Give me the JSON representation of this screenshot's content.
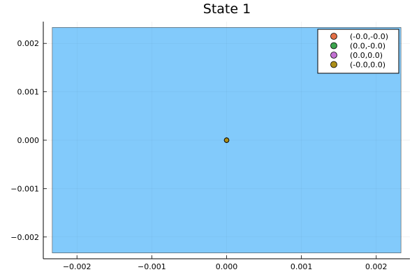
{
  "chart_data": {
    "type": "scatter",
    "title": "State 1",
    "xlabel": "",
    "ylabel": "",
    "xlim": [
      -0.00245,
      0.00245
    ],
    "ylim": [
      -0.00245,
      0.00245
    ],
    "x_ticks": [
      -0.002,
      -0.001,
      0.0,
      0.001,
      0.002
    ],
    "x_tick_labels": [
      "−0.002",
      "−0.001",
      "0.000",
      "0.001",
      "0.002"
    ],
    "y_ticks": [
      -0.002,
      -0.001,
      0.0,
      0.001,
      0.002
    ],
    "y_tick_labels": [
      "−0.002",
      "−0.001",
      "0.000",
      "0.001",
      "0.002"
    ],
    "grid": true,
    "legend_position": "top-right",
    "region": {
      "x": [
        -0.00233,
        0.00233
      ],
      "y": [
        -0.00233,
        0.00233
      ],
      "color": "#80C9FB"
    },
    "series": [
      {
        "name": "(-0.0,-0.0)",
        "x": [
          0.0
        ],
        "y": [
          0.0
        ],
        "color": "#E26F46"
      },
      {
        "name": "(0.0,-0.0)",
        "x": [
          0.0
        ],
        "y": [
          0.0
        ],
        "color": "#3DA44E"
      },
      {
        "name": "(0.0,0.0)",
        "x": [
          0.0
        ],
        "y": [
          0.0
        ],
        "color": "#C271D2"
      },
      {
        "name": "(-0.0,0.0)",
        "x": [
          0.0
        ],
        "y": [
          0.0
        ],
        "color": "#AC8E18"
      }
    ]
  }
}
